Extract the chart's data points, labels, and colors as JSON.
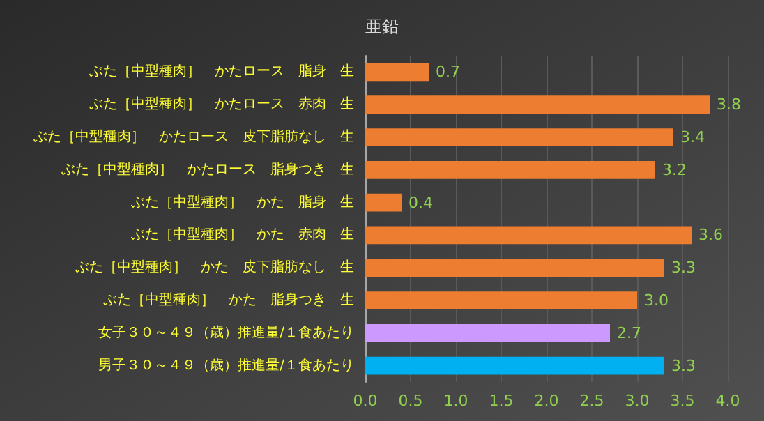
{
  "chart_data": {
    "type": "bar",
    "orientation": "horizontal",
    "title": "亜鉛",
    "categories": [
      "ぶた［中型種肉］　かたロース　脂身　生",
      "ぶた［中型種肉］　かたロース　赤肉　生",
      "ぶた［中型種肉］　かたロース　皮下脂肪なし　生",
      "ぶた［中型種肉］　かたロース　脂身つき　生",
      "ぶた［中型種肉］　かた　脂身　生",
      "ぶた［中型種肉］　かた　赤肉　生",
      "ぶた［中型種肉］　かた　皮下脂肪なし　生",
      "ぶた［中型種肉］　かた　脂身つき　生",
      "女子３０～４９（歳）推進量/１食あたり",
      "男子３０～４９（歳）推進量/１食あたり"
    ],
    "values": [
      0.7,
      3.8,
      3.4,
      3.2,
      0.4,
      3.6,
      3.3,
      3.0,
      2.7,
      3.3
    ],
    "value_labels": [
      "0.7",
      "3.8",
      "3.4",
      "3.2",
      "0.4",
      "3.6",
      "3.3",
      "3.0",
      "2.7",
      "3.3"
    ],
    "colors": [
      "#ed7d31",
      "#ed7d31",
      "#ed7d31",
      "#ed7d31",
      "#ed7d31",
      "#ed7d31",
      "#ed7d31",
      "#ed7d31",
      "#cc99ff",
      "#00b0f0"
    ],
    "xlim": [
      0,
      4
    ],
    "xticks": [
      {
        "value": 0,
        "label": "0.0"
      },
      0.5,
      {
        "value": 1,
        "label": "1.0"
      },
      1.5,
      {
        "value": 2,
        "label": "2.0"
      },
      2.5,
      {
        "value": 3,
        "label": "3.0"
      },
      3.5,
      {
        "value": 4,
        "label": "4.0"
      }
    ],
    "grid": "x"
  }
}
